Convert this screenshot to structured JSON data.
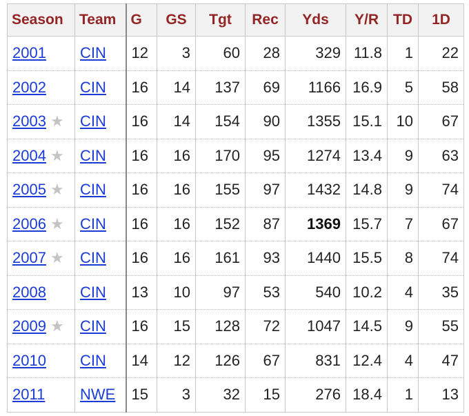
{
  "headers": [
    "Season",
    "Team",
    "G",
    "GS",
    "Tgt",
    "Rec",
    "Yds",
    "Y/R",
    "TD",
    "1D"
  ],
  "rows": [
    {
      "season": "2001",
      "star": false,
      "team": "CIN",
      "g": "12",
      "gs": "3",
      "tgt": "60",
      "rec": "28",
      "yds": "329",
      "ypr": "11.8",
      "td": "1",
      "fd": "22"
    },
    {
      "season": "2002",
      "star": false,
      "team": "CIN",
      "g": "16",
      "gs": "14",
      "tgt": "137",
      "rec": "69",
      "yds": "1166",
      "ypr": "16.9",
      "td": "5",
      "fd": "58"
    },
    {
      "season": "2003",
      "star": true,
      "team": "CIN",
      "g": "16",
      "gs": "14",
      "tgt": "154",
      "rec": "90",
      "yds": "1355",
      "ypr": "15.1",
      "td": "10",
      "fd": "67"
    },
    {
      "season": "2004",
      "star": true,
      "team": "CIN",
      "g": "16",
      "gs": "16",
      "tgt": "170",
      "rec": "95",
      "yds": "1274",
      "ypr": "13.4",
      "td": "9",
      "fd": "63"
    },
    {
      "season": "2005",
      "star": true,
      "team": "CIN",
      "g": "16",
      "gs": "16",
      "tgt": "155",
      "rec": "97",
      "yds": "1432",
      "ypr": "14.8",
      "td": "9",
      "fd": "74"
    },
    {
      "season": "2006",
      "star": true,
      "team": "CIN",
      "g": "16",
      "gs": "16",
      "tgt": "152",
      "rec": "87",
      "yds": "1369",
      "ypr": "15.7",
      "td": "7",
      "fd": "67",
      "yds_bold": true
    },
    {
      "season": "2007",
      "star": true,
      "team": "CIN",
      "g": "16",
      "gs": "16",
      "tgt": "161",
      "rec": "93",
      "yds": "1440",
      "ypr": "15.5",
      "td": "8",
      "fd": "74"
    },
    {
      "season": "2008",
      "star": false,
      "team": "CIN",
      "g": "13",
      "gs": "10",
      "tgt": "97",
      "rec": "53",
      "yds": "540",
      "ypr": "10.2",
      "td": "4",
      "fd": "35"
    },
    {
      "season": "2009",
      "star": true,
      "team": "CIN",
      "g": "16",
      "gs": "15",
      "tgt": "128",
      "rec": "72",
      "yds": "1047",
      "ypr": "14.5",
      "td": "9",
      "fd": "55"
    },
    {
      "season": "2010",
      "star": false,
      "team": "CIN",
      "g": "14",
      "gs": "12",
      "tgt": "126",
      "rec": "67",
      "yds": "831",
      "ypr": "12.4",
      "td": "4",
      "fd": "47"
    },
    {
      "season": "2011",
      "star": false,
      "team": "NWE",
      "g": "15",
      "gs": "3",
      "tgt": "32",
      "rec": "15",
      "yds": "276",
      "ypr": "18.4",
      "td": "1",
      "fd": "13"
    }
  ],
  "star_glyph": "★",
  "colors": {
    "header_text": "#932525",
    "link": "#1a3bd6",
    "star": "#c4c4c4",
    "header_bg": "#f2f2f2"
  }
}
